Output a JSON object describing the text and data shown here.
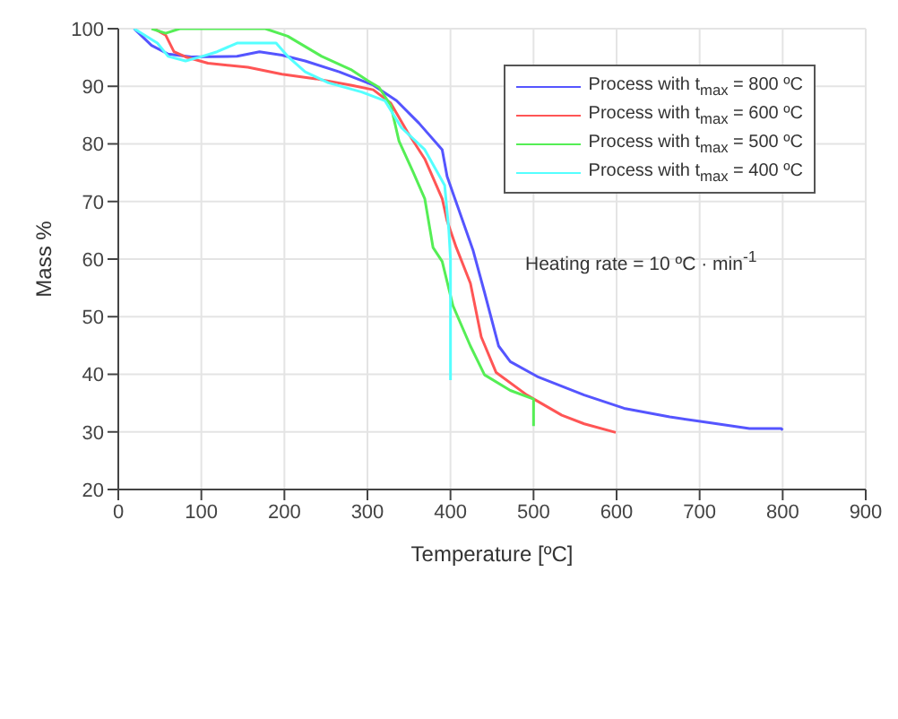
{
  "chart_data": {
    "type": "line",
    "xlabel": "Temperature [ºC]",
    "ylabel": "Mass %",
    "xlim": [
      0,
      900
    ],
    "xticks": [
      0,
      100,
      200,
      300,
      400,
      500,
      600,
      700,
      800,
      900
    ],
    "ylim": [
      20,
      100
    ],
    "yticks": [
      20,
      30,
      40,
      50,
      60,
      70,
      80,
      90,
      100
    ],
    "grid": true,
    "legend": "top right",
    "marker": "none",
    "line_style": "solid",
    "annotations": [
      "Heating rate = 10 ºC · min$^{-1}$"
    ],
    "series": [
      {
        "name": "Process with t$_{max}$ = 800 ºC",
        "color": "#5555ff",
        "x": [
          19,
          40,
          60,
          88,
          143,
          170,
          197,
          225,
          266,
          307,
          335,
          362,
          390,
          396,
          427,
          441,
          458,
          472,
          506,
          561,
          609,
          664,
          712,
          760,
          798,
          800
        ],
        "values": [
          100,
          97.1,
          95.6,
          95.1,
          95.2,
          96,
          95.4,
          94.4,
          92.5,
          90.2,
          87.5,
          83.6,
          79,
          74.3,
          61.6,
          54.2,
          44.9,
          42.2,
          39.5,
          36.4,
          34.1,
          32.6,
          31.6,
          30.6,
          30.6,
          30.3
        ]
      },
      {
        "name": "Process with t$_{max}$ = 600 ºC",
        "color": "#ff5555",
        "x": [
          43,
          57,
          67,
          81,
          108,
          156,
          197,
          238,
          280,
          307,
          328,
          348,
          369,
          390,
          396,
          407,
          424,
          437,
          455,
          492,
          534,
          561,
          599
        ],
        "values": [
          100,
          98.9,
          96,
          95.1,
          94,
          93.3,
          92.1,
          91.3,
          90.2,
          89.4,
          87.1,
          82.1,
          77.4,
          70.5,
          66.6,
          62,
          55.8,
          46.5,
          40.3,
          36.4,
          32.9,
          31.4,
          29.9
        ]
      },
      {
        "name": "Process with t$_{max}$ = 500 ºC",
        "color": "#55ee55",
        "x": [
          40,
          57,
          74,
          177,
          204,
          245,
          280,
          300,
          314,
          328,
          338,
          355,
          369,
          379,
          390,
          403,
          424,
          441,
          472,
          500,
          500
        ],
        "values": [
          100,
          99.2,
          100,
          100,
          98.7,
          95.2,
          92.9,
          91,
          89.8,
          86.7,
          80.5,
          75.1,
          70.5,
          62,
          59.6,
          51.9,
          44.9,
          39.9,
          37.2,
          35.7,
          31
        ]
      },
      {
        "name": "Process with t$_{max}$ = 400 ºC",
        "color": "#55ffff",
        "x": [
          19,
          47,
          60,
          81,
          101,
          119,
          143,
          190,
          204,
          225,
          253,
          293,
          321,
          341,
          369,
          393,
          398,
          400,
          400
        ],
        "values": [
          100,
          97.5,
          95.2,
          94.4,
          95.2,
          96,
          97.5,
          97.5,
          95.2,
          92.5,
          90.6,
          89,
          87.5,
          82.8,
          79,
          72.8,
          65,
          60,
          39
        ]
      }
    ]
  }
}
